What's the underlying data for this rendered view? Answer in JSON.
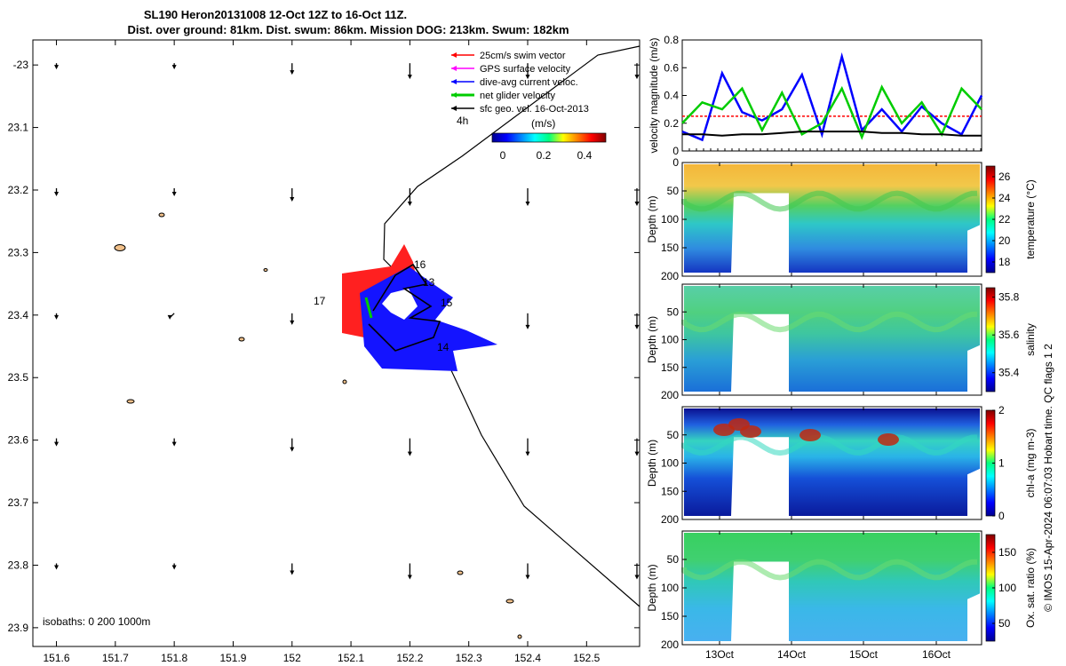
{
  "title_line1": "SL190 Heron20131008 12-Oct 12Z to 16-Oct 11Z.",
  "title_line2": "Dist. over ground: 81km. Dist. swum: 86km. Mission DOG: 213km. Swum: 182km",
  "isobath_text": "isobaths: 0   200  1000m",
  "credit_text": "© IMOS 15-Apr-2024 06:07:03 Hobart time. QC flags 1  2",
  "legend": {
    "items": [
      {
        "label": "25cm/s swim vector",
        "color": "#ff0000"
      },
      {
        "label": "GPS surface velocity",
        "color": "#ff00ff"
      },
      {
        "label": "dive-avg current veloc.",
        "color": "#0000ff"
      },
      {
        "label": "net glider velocity",
        "color": "#00cc00"
      },
      {
        "label": "sfc geo. vel. 16-Oct-2013",
        "color": "#000000"
      }
    ],
    "interval_label": "4h",
    "colorbar_unit": "(m/s)",
    "colorbar_ticks": [
      "0",
      "0.2",
      "0.4"
    ]
  },
  "day_labels": [
    "16",
    "17",
    "13",
    "15",
    "14"
  ],
  "chart_data": [
    {
      "type": "scatter",
      "name": "track map",
      "xlabel": "",
      "ylabel": "",
      "x_ticks": [
        "151.6",
        "151.7",
        "151.8",
        "151.9",
        "152",
        "152.1",
        "152.2",
        "152.3",
        "152.4",
        "152.5"
      ],
      "y_ticks": [
        "-23",
        "23.1",
        "23.2",
        "23.3",
        "23.4",
        "23.5",
        "23.6",
        "23.7",
        "23.8",
        "23.9"
      ],
      "xlim": [
        151.56,
        152.59
      ],
      "ylim": [
        -23.93,
        -22.96
      ],
      "glider_track": {
        "lon": [
          152.14,
          152.2,
          152.17,
          152.24,
          152.19,
          152.26,
          152.2,
          152.16,
          152.13,
          152.16,
          152.23,
          152.19
        ],
        "lat": [
          -23.38,
          -23.34,
          -23.39,
          -23.43,
          -23.37,
          -23.4,
          -23.44,
          -23.46,
          -23.42,
          -23.38,
          -23.41,
          -23.35
        ]
      },
      "geo_arrow_lon": [
        151.6,
        151.8,
        152.0,
        152.2,
        152.4,
        152.59
      ]
    },
    {
      "type": "line",
      "name": "velocity magnitude",
      "ylabel": "velocity magnitude (m/s)",
      "ylim": [
        0,
        0.8
      ],
      "y_ticks": [
        "0",
        "0.2",
        "0.4",
        "0.6",
        "0.8"
      ],
      "series": [
        {
          "name": "swim",
          "color": "#ff0000",
          "values": [
            0.25,
            0.25,
            0.25,
            0.25,
            0.25,
            0.25,
            0.25,
            0.25,
            0.25,
            0.25,
            0.25,
            0.25,
            0.25,
            0.25,
            0.25,
            0.25
          ]
        },
        {
          "name": "dive-avg current",
          "color": "#0000ff",
          "values": [
            0.14,
            0.08,
            0.56,
            0.28,
            0.22,
            0.3,
            0.55,
            0.12,
            0.68,
            0.15,
            0.3,
            0.14,
            0.32,
            0.2,
            0.12,
            0.4
          ]
        },
        {
          "name": "net glider",
          "color": "#00cc00",
          "values": [
            0.2,
            0.35,
            0.3,
            0.45,
            0.15,
            0.42,
            0.12,
            0.2,
            0.45,
            0.1,
            0.46,
            0.2,
            0.35,
            0.12,
            0.45,
            0.3
          ]
        },
        {
          "name": "sfc geo",
          "color": "#000000",
          "values": [
            0.12,
            0.12,
            0.11,
            0.12,
            0.12,
            0.13,
            0.14,
            0.14,
            0.14,
            0.14,
            0.13,
            0.13,
            0.12,
            0.12,
            0.11,
            0.11
          ]
        }
      ]
    },
    {
      "type": "heatmap",
      "name": "temperature",
      "ylabel": "Depth (m)",
      "y_ticks": [
        "0",
        "50",
        "100",
        "150",
        "200"
      ],
      "colorbar_label": "temperature (°C)",
      "colorbar_ticks": [
        "26",
        "24",
        "22",
        "20",
        "18"
      ],
      "range": [
        17,
        27
      ]
    },
    {
      "type": "heatmap",
      "name": "salinity",
      "ylabel": "Depth (m)",
      "y_ticks": [
        "50",
        "100",
        "150",
        "200"
      ],
      "colorbar_label": "salinity",
      "colorbar_ticks": [
        "35.8",
        "35.6",
        "35.4"
      ],
      "range": [
        35.3,
        35.85
      ]
    },
    {
      "type": "heatmap",
      "name": "chl-a",
      "ylabel": "Depth (m)",
      "y_ticks": [
        "50",
        "100",
        "150",
        "200"
      ],
      "colorbar_label": "chl-a (mg m-3)",
      "colorbar_ticks": [
        "2",
        "1",
        "0"
      ],
      "range": [
        0,
        2
      ]
    },
    {
      "type": "heatmap",
      "name": "oxygen",
      "ylabel": "Depth (m)",
      "y_ticks": [
        "50",
        "100",
        "150",
        "200"
      ],
      "x_ticks": [
        "13Oct",
        "14Oct",
        "15Oct",
        "16Oct"
      ],
      "colorbar_label": "Ox. sat. ratio (%)",
      "colorbar_ticks": [
        "150",
        "100",
        "50"
      ],
      "range": [
        25,
        175
      ]
    }
  ]
}
